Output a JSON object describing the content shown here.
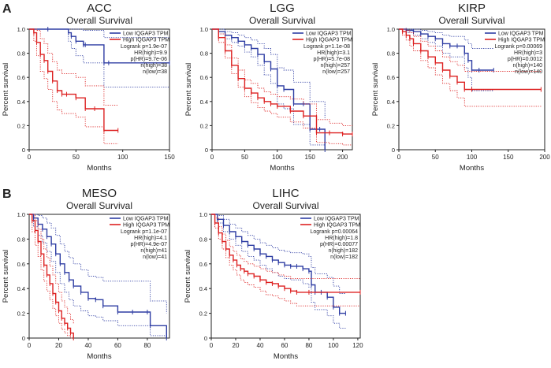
{
  "colors": {
    "low": "#2e3da3",
    "high": "#dd2222",
    "axis": "#222222",
    "text": "#222222"
  },
  "panel_labels": {
    "A": "A",
    "B": "B"
  },
  "chart_data": [
    {
      "type": "line",
      "cancer": "ACC",
      "title": "Overall Survival",
      "xlabel": "Months",
      "ylabel": "Percent survival",
      "xlim": [
        0,
        150
      ],
      "ylim": [
        0,
        1.0
      ],
      "xticks": [
        0,
        50,
        100,
        150
      ],
      "yticks": [
        0,
        0.2,
        0.4,
        0.6,
        0.8,
        1.0
      ],
      "legend": [
        "Low IQGAP3 TPM",
        "High IQGAP3 TPM"
      ],
      "stats": [
        "Logrank p=1.9e-07",
        "HR(high)=9.9",
        "p(HR)=9.7e-06",
        "n(high)=38",
        "n(low)=38"
      ],
      "series": [
        {
          "name": "Low IQGAP3 TPM",
          "x": [
            0,
            20,
            42,
            45,
            50,
            58,
            60,
            80,
            85,
            150
          ],
          "y": [
            1.0,
            1.0,
            0.97,
            0.94,
            0.9,
            0.87,
            0.87,
            0.72,
            0.72,
            0.72
          ],
          "ci_upper": [
            1.0,
            1.0,
            1.0,
            1.0,
            1.0,
            0.99,
            0.99,
            0.93,
            0.93,
            0.93
          ],
          "ci_lower": [
            1.0,
            1.0,
            0.9,
            0.84,
            0.78,
            0.72,
            0.72,
            0.52,
            0.52,
            0.52
          ]
        },
        {
          "name": "High IQGAP3 TPM",
          "x": [
            0,
            5,
            8,
            12,
            16,
            20,
            25,
            30,
            35,
            40,
            50,
            60,
            70,
            80,
            95
          ],
          "y": [
            1.0,
            0.97,
            0.89,
            0.79,
            0.74,
            0.65,
            0.57,
            0.49,
            0.46,
            0.46,
            0.43,
            0.34,
            0.34,
            0.16,
            0.16
          ],
          "ci_upper": [
            1.0,
            1.0,
            0.99,
            0.92,
            0.88,
            0.8,
            0.73,
            0.66,
            0.63,
            0.63,
            0.6,
            0.53,
            0.53,
            0.37,
            0.37
          ],
          "ci_lower": [
            1.0,
            0.9,
            0.78,
            0.65,
            0.59,
            0.5,
            0.4,
            0.33,
            0.3,
            0.3,
            0.27,
            0.19,
            0.19,
            0.05,
            0.05
          ]
        }
      ]
    },
    {
      "type": "line",
      "cancer": "LGG",
      "title": "Overall Survival",
      "xlabel": "Months",
      "ylabel": "Percent survival",
      "xlim": [
        0,
        215
      ],
      "ylim": [
        0,
        1.0
      ],
      "xticks": [
        0,
        50,
        100,
        150,
        200
      ],
      "yticks": [
        0,
        0.2,
        0.4,
        0.6,
        0.8,
        1.0
      ],
      "legend": [
        "Low IQGAP3 TPM",
        "High IQGAP3 TPM"
      ],
      "stats": [
        "Logrank p=1.1e-08",
        "HR(high)=3.1",
        "p(HR)=5.7e-08",
        "n(high)=257",
        "n(low)=257"
      ],
      "series": [
        {
          "name": "Low IQGAP3 TPM",
          "x": [
            0,
            10,
            20,
            30,
            40,
            50,
            60,
            70,
            80,
            90,
            100,
            110,
            125,
            140,
            150,
            165,
            173
          ],
          "y": [
            1.0,
            0.98,
            0.95,
            0.93,
            0.9,
            0.87,
            0.84,
            0.79,
            0.73,
            0.67,
            0.53,
            0.5,
            0.38,
            0.38,
            0.17,
            0.17,
            0.0
          ],
          "ci_upper": [
            1.0,
            1.0,
            0.98,
            0.97,
            0.95,
            0.93,
            0.91,
            0.88,
            0.84,
            0.79,
            0.68,
            0.66,
            0.56,
            0.56,
            0.4,
            0.4,
            0.25
          ],
          "ci_lower": [
            1.0,
            0.96,
            0.92,
            0.89,
            0.86,
            0.81,
            0.77,
            0.7,
            0.62,
            0.55,
            0.38,
            0.34,
            0.21,
            0.21,
            0.04,
            0.04,
            0.0
          ]
        },
        {
          "name": "High IQGAP3 TPM",
          "x": [
            0,
            10,
            20,
            30,
            40,
            50,
            60,
            70,
            80,
            90,
            100,
            120,
            140,
            160,
            180,
            200,
            215
          ],
          "y": [
            1.0,
            0.93,
            0.82,
            0.7,
            0.59,
            0.51,
            0.47,
            0.43,
            0.4,
            0.38,
            0.36,
            0.32,
            0.28,
            0.14,
            0.14,
            0.13,
            0.13
          ],
          "ci_upper": [
            1.0,
            0.96,
            0.87,
            0.76,
            0.66,
            0.58,
            0.55,
            0.51,
            0.48,
            0.46,
            0.44,
            0.42,
            0.38,
            0.25,
            0.22,
            0.2,
            0.2
          ],
          "ci_lower": [
            1.0,
            0.89,
            0.76,
            0.63,
            0.52,
            0.44,
            0.39,
            0.35,
            0.32,
            0.3,
            0.27,
            0.23,
            0.18,
            0.06,
            0.05,
            0.04,
            0.04
          ]
        }
      ]
    },
    {
      "type": "line",
      "cancer": "KIRP",
      "title": "Overall Survival",
      "xlabel": "Months",
      "ylabel": "Percent survival",
      "xlim": [
        0,
        200
      ],
      "ylim": [
        0,
        1.0
      ],
      "xticks": [
        0,
        50,
        100,
        150,
        200
      ],
      "yticks": [
        0,
        0.2,
        0.4,
        0.6,
        0.8,
        1.0
      ],
      "legend": [
        "Low IQGAP3 TPM",
        "High IQGAP3 TPM"
      ],
      "stats": [
        "Logrank p=0.00069",
        "HR(high)=3",
        "p(HR)=0.0012",
        "n(high)=140",
        "n(low)=140"
      ],
      "series": [
        {
          "name": "Low IQGAP3 TPM",
          "x": [
            0,
            10,
            20,
            30,
            40,
            50,
            60,
            70,
            80,
            90,
            95,
            100,
            110,
            130
          ],
          "y": [
            1.0,
            0.99,
            0.98,
            0.96,
            0.94,
            0.92,
            0.88,
            0.86,
            0.86,
            0.8,
            0.74,
            0.66,
            0.66,
            0.66
          ],
          "ci_upper": [
            1.0,
            1.0,
            1.0,
            0.99,
            0.98,
            0.97,
            0.95,
            0.94,
            0.94,
            0.91,
            0.88,
            0.84,
            0.84,
            0.84
          ],
          "ci_lower": [
            1.0,
            0.97,
            0.95,
            0.92,
            0.89,
            0.86,
            0.8,
            0.77,
            0.77,
            0.68,
            0.6,
            0.49,
            0.49,
            0.49
          ]
        },
        {
          "name": "High IQGAP3 TPM",
          "x": [
            0,
            5,
            10,
            15,
            20,
            30,
            40,
            50,
            60,
            70,
            80,
            90,
            100,
            195
          ],
          "y": [
            1.0,
            0.98,
            0.95,
            0.92,
            0.88,
            0.82,
            0.77,
            0.72,
            0.66,
            0.61,
            0.56,
            0.5,
            0.5,
            0.5
          ],
          "ci_upper": [
            1.0,
            1.0,
            0.99,
            0.97,
            0.94,
            0.9,
            0.86,
            0.82,
            0.77,
            0.73,
            0.7,
            0.65,
            0.65,
            0.65
          ],
          "ci_lower": [
            1.0,
            0.95,
            0.91,
            0.86,
            0.82,
            0.74,
            0.68,
            0.62,
            0.55,
            0.49,
            0.43,
            0.36,
            0.36,
            0.36
          ]
        }
      ]
    },
    {
      "type": "line",
      "cancer": "MESO",
      "title": "Overall Survival",
      "xlabel": "Months",
      "ylabel": "Percent survival",
      "xlim": [
        0,
        95
      ],
      "ylim": [
        0,
        1.0
      ],
      "xticks": [
        0,
        20,
        40,
        60,
        80
      ],
      "yticks": [
        0,
        0.2,
        0.4,
        0.6,
        0.8,
        1.0
      ],
      "legend": [
        "Low IQGAP3 TPM",
        "High IQGAP3 TPM"
      ],
      "stats": [
        "Logrank p=1.1e-07",
        "HR(high)=4.1",
        "p(HR)=4.9e-07",
        "n(high)=41",
        "n(low)=41"
      ],
      "series": [
        {
          "name": "Low IQGAP3 TPM",
          "x": [
            0,
            3,
            6,
            9,
            12,
            15,
            18,
            21,
            24,
            27,
            30,
            35,
            40,
            45,
            50,
            60,
            70,
            80,
            82,
            93
          ],
          "y": [
            1.0,
            0.97,
            0.92,
            0.88,
            0.82,
            0.76,
            0.68,
            0.6,
            0.53,
            0.47,
            0.42,
            0.37,
            0.32,
            0.31,
            0.26,
            0.21,
            0.21,
            0.21,
            0.1,
            0.0
          ],
          "ci_upper": [
            1.0,
            1.0,
            0.99,
            0.97,
            0.93,
            0.89,
            0.83,
            0.76,
            0.7,
            0.65,
            0.6,
            0.55,
            0.5,
            0.49,
            0.46,
            0.46,
            0.46,
            0.46,
            0.3,
            0.2
          ],
          "ci_lower": [
            1.0,
            0.9,
            0.83,
            0.77,
            0.7,
            0.62,
            0.53,
            0.44,
            0.37,
            0.31,
            0.26,
            0.22,
            0.18,
            0.17,
            0.14,
            0.1,
            0.1,
            0.1,
            0.02,
            0.0
          ]
        },
        {
          "name": "High IQGAP3 TPM",
          "x": [
            0,
            2,
            4,
            6,
            8,
            10,
            12,
            14,
            16,
            18,
            20,
            22,
            24,
            26,
            28,
            30
          ],
          "y": [
            1.0,
            0.95,
            0.87,
            0.78,
            0.68,
            0.59,
            0.51,
            0.44,
            0.36,
            0.29,
            0.22,
            0.16,
            0.12,
            0.08,
            0.04,
            0.0
          ],
          "ci_upper": [
            1.0,
            1.0,
            0.95,
            0.88,
            0.8,
            0.72,
            0.65,
            0.58,
            0.51,
            0.44,
            0.37,
            0.3,
            0.25,
            0.2,
            0.15,
            0.12
          ],
          "ci_lower": [
            1.0,
            0.86,
            0.75,
            0.66,
            0.55,
            0.46,
            0.38,
            0.31,
            0.24,
            0.18,
            0.12,
            0.07,
            0.04,
            0.02,
            0.0,
            0.0
          ]
        }
      ]
    },
    {
      "type": "line",
      "cancer": "LIHC",
      "title": "Overall Survival",
      "xlabel": "Months",
      "ylabel": "Percent survival",
      "xlim": [
        0,
        122
      ],
      "ylim": [
        0,
        1.0
      ],
      "xticks": [
        0,
        20,
        40,
        60,
        80,
        100,
        120
      ],
      "yticks": [
        0,
        0.2,
        0.4,
        0.6,
        0.8,
        1.0
      ],
      "legend": [
        "Low IQGAP3 TPM",
        "High IQGAP3 TPM"
      ],
      "stats": [
        "Logrank p=0.00064",
        "HR(high)=1.8",
        "p(HR)=0.00077",
        "n(high)=182",
        "n(low)=182"
      ],
      "series": [
        {
          "name": "Low IQGAP3 TPM",
          "x": [
            0,
            5,
            10,
            15,
            20,
            25,
            30,
            35,
            40,
            45,
            50,
            55,
            60,
            65,
            70,
            75,
            80,
            82,
            85,
            90,
            95,
            100,
            105,
            110
          ],
          "y": [
            1.0,
            0.96,
            0.91,
            0.86,
            0.82,
            0.78,
            0.75,
            0.72,
            0.68,
            0.66,
            0.63,
            0.61,
            0.59,
            0.58,
            0.58,
            0.56,
            0.54,
            0.43,
            0.37,
            0.37,
            0.33,
            0.25,
            0.2,
            0.2
          ],
          "ci_upper": [
            1.0,
            0.99,
            0.96,
            0.92,
            0.89,
            0.86,
            0.83,
            0.8,
            0.77,
            0.75,
            0.73,
            0.71,
            0.7,
            0.69,
            0.69,
            0.68,
            0.66,
            0.57,
            0.52,
            0.52,
            0.49,
            0.42,
            0.36,
            0.36
          ],
          "ci_lower": [
            1.0,
            0.93,
            0.86,
            0.8,
            0.75,
            0.7,
            0.66,
            0.63,
            0.59,
            0.56,
            0.53,
            0.5,
            0.48,
            0.47,
            0.47,
            0.44,
            0.41,
            0.29,
            0.23,
            0.23,
            0.18,
            0.12,
            0.08,
            0.08
          ]
        },
        {
          "name": "High IQGAP3 TPM",
          "x": [
            0,
            3,
            6,
            9,
            12,
            15,
            18,
            21,
            24,
            27,
            30,
            35,
            40,
            45,
            50,
            55,
            60,
            65,
            70,
            80,
            122
          ],
          "y": [
            1.0,
            0.93,
            0.85,
            0.78,
            0.72,
            0.67,
            0.63,
            0.59,
            0.56,
            0.54,
            0.52,
            0.5,
            0.47,
            0.45,
            0.44,
            0.42,
            0.4,
            0.38,
            0.37,
            0.37,
            0.37
          ],
          "ci_upper": [
            1.0,
            0.97,
            0.9,
            0.84,
            0.79,
            0.74,
            0.7,
            0.67,
            0.64,
            0.62,
            0.6,
            0.58,
            0.56,
            0.54,
            0.53,
            0.51,
            0.5,
            0.48,
            0.48,
            0.48,
            0.48
          ],
          "ci_lower": [
            1.0,
            0.89,
            0.8,
            0.72,
            0.65,
            0.59,
            0.55,
            0.51,
            0.47,
            0.45,
            0.43,
            0.41,
            0.38,
            0.35,
            0.34,
            0.32,
            0.3,
            0.28,
            0.26,
            0.26,
            0.26
          ]
        }
      ]
    }
  ]
}
